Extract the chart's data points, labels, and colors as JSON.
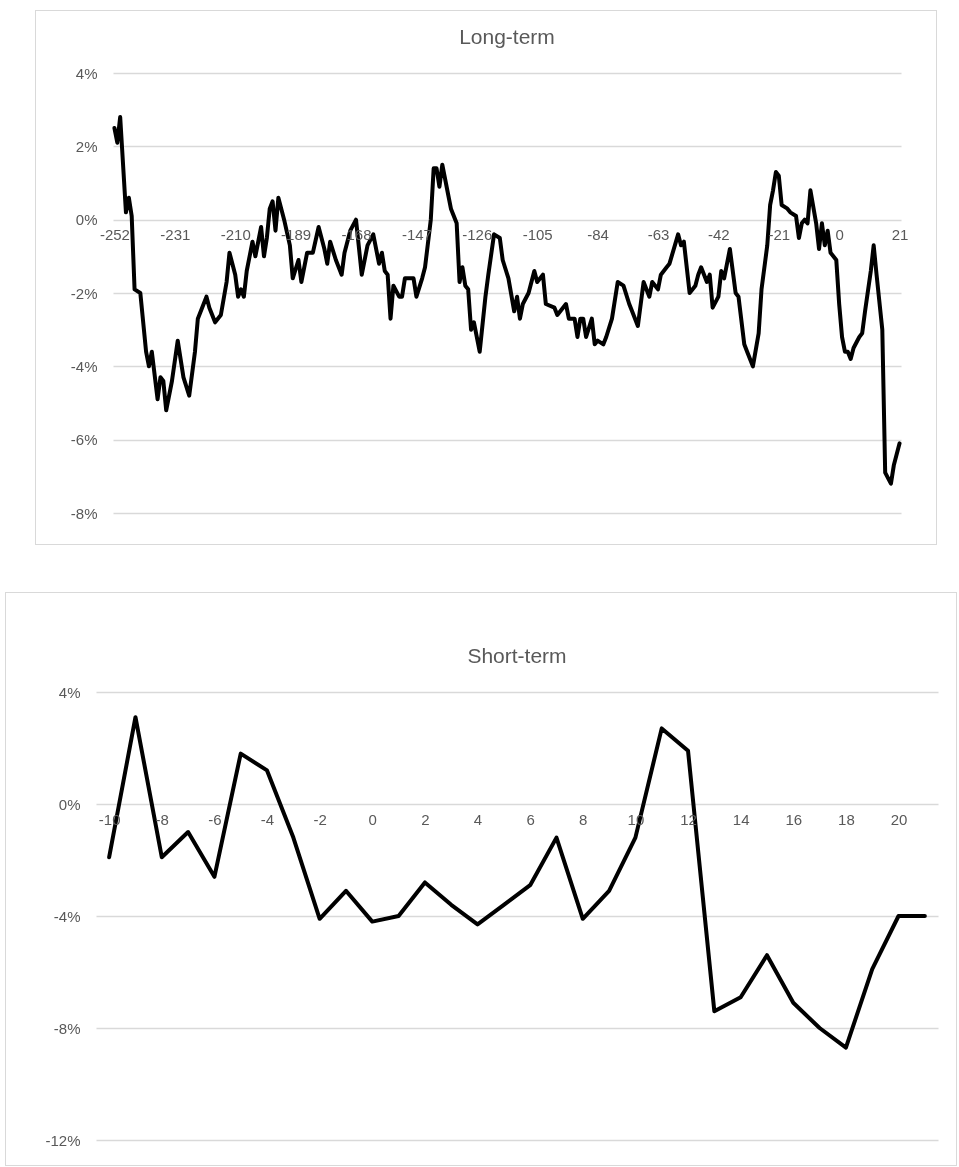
{
  "chart_data": [
    {
      "type": "line",
      "title": "Long-term",
      "grid": "y",
      "xlim": [
        -252.5,
        21.5
      ],
      "xticks": [
        -252,
        -231,
        -210,
        -189,
        -168,
        -147,
        -126,
        -105,
        -84,
        -63,
        -42,
        -21,
        0,
        21
      ],
      "ylim": [
        -8,
        4
      ],
      "yticks": [
        {
          "value": -8,
          "label": "-8%"
        },
        {
          "value": -6,
          "label": "-6%"
        },
        {
          "value": -4,
          "label": "-4%"
        },
        {
          "value": -2,
          "label": "-2%"
        },
        {
          "value": 0,
          "label": "0%"
        },
        {
          "value": 2,
          "label": "2%"
        },
        {
          "value": 4,
          "label": "4%"
        }
      ],
      "x": [
        -252,
        -251,
        -250,
        -248,
        -247,
        -246,
        -245,
        -243,
        -241,
        -240,
        -239,
        -237,
        -236,
        -235,
        -234,
        -232,
        -230,
        -228,
        -226,
        -224,
        -223,
        -220,
        -219,
        -217,
        -215,
        -213,
        -212,
        -210,
        -209,
        -208,
        -207,
        -206,
        -204,
        -203,
        -201,
        -200,
        -199,
        -198,
        -197,
        -196,
        -195,
        -193,
        -191,
        -190,
        -188,
        -187,
        -185,
        -183,
        -181,
        -179,
        -178,
        -177,
        -175,
        -173,
        -172,
        -170,
        -168,
        -166,
        -164,
        -162,
        -160,
        -159,
        -158,
        -157,
        -156,
        -155,
        -153,
        -152,
        -151,
        -148,
        -147,
        -145,
        -144,
        -142,
        -141,
        -140,
        -139,
        -138,
        -136,
        -135,
        -133,
        -132,
        -131,
        -130,
        -129,
        -128,
        -127,
        -125,
        -123,
        -122,
        -120,
        -118,
        -117,
        -115,
        -113,
        -112,
        -111,
        -110,
        -108,
        -106,
        -105,
        -103,
        -102,
        -99,
        -98,
        -95,
        -94,
        -92,
        -91,
        -90,
        -89,
        -88,
        -86,
        -85,
        -84,
        -82,
        -81,
        -79,
        -77,
        -75,
        -73,
        -72,
        -70,
        -68,
        -66,
        -65,
        -63,
        -62,
        -60,
        -59,
        -56,
        -55,
        -54,
        -52,
        -50,
        -49,
        -48,
        -46,
        -45,
        -44,
        -42,
        -41,
        -40,
        -38,
        -36,
        -35,
        -33,
        -32,
        -30,
        -28,
        -27,
        -25,
        -24,
        -23,
        -22,
        -21,
        -20,
        -18,
        -17,
        -15,
        -14,
        -13,
        -12,
        -11,
        -10,
        -8,
        -7,
        -6,
        -5,
        -4,
        -3,
        -1,
        0,
        1,
        2,
        3,
        4,
        5,
        7,
        8,
        9,
        11,
        12,
        13,
        15,
        16,
        18,
        19,
        21
      ],
      "series": [
        {
          "color": "#000000",
          "values": [
            2.5,
            2.1,
            2.8,
            0.2,
            0.6,
            0.1,
            -1.9,
            -2.0,
            -3.6,
            -4.0,
            -3.6,
            -4.9,
            -4.3,
            -4.4,
            -5.2,
            -4.4,
            -3.3,
            -4.3,
            -4.8,
            -3.6,
            -2.7,
            -2.1,
            -2.4,
            -2.8,
            -2.6,
            -1.7,
            -0.9,
            -1.5,
            -2.1,
            -1.9,
            -2.1,
            -1.4,
            -0.6,
            -1.0,
            -0.2,
            -1.0,
            -0.5,
            0.3,
            0.5,
            -0.3,
            0.6,
            0.0,
            -0.7,
            -1.6,
            -1.1,
            -1.7,
            -0.9,
            -0.9,
            -0.2,
            -0.8,
            -1.2,
            -0.6,
            -1.1,
            -1.5,
            -0.9,
            -0.3,
            0.0,
            -1.5,
            -0.7,
            -0.4,
            -1.2,
            -0.9,
            -1.4,
            -1.5,
            -2.7,
            -1.8,
            -2.1,
            -2.1,
            -1.6,
            -1.6,
            -2.1,
            -1.6,
            -1.3,
            0.0,
            1.4,
            1.4,
            0.9,
            1.5,
            0.7,
            0.3,
            -0.1,
            -1.7,
            -1.3,
            -1.8,
            -1.9,
            -3.0,
            -2.8,
            -3.6,
            -2.1,
            -1.5,
            -0.4,
            -0.5,
            -1.1,
            -1.6,
            -2.5,
            -2.1,
            -2.7,
            -2.3,
            -2.0,
            -1.4,
            -1.7,
            -1.5,
            -2.3,
            -2.4,
            -2.6,
            -2.3,
            -2.7,
            -2.7,
            -3.2,
            -2.7,
            -2.7,
            -3.2,
            -2.7,
            -3.4,
            -3.3,
            -3.4,
            -3.2,
            -2.7,
            -1.7,
            -1.8,
            -2.3,
            -2.5,
            -2.9,
            -1.7,
            -2.1,
            -1.7,
            -1.9,
            -1.5,
            -1.3,
            -1.2,
            -0.4,
            -0.7,
            -0.6,
            -2.0,
            -1.8,
            -1.5,
            -1.3,
            -1.7,
            -1.5,
            -2.4,
            -2.1,
            -1.4,
            -1.6,
            -0.8,
            -2.0,
            -2.1,
            -3.4,
            -3.6,
            -4.0,
            -3.1,
            -1.9,
            -0.7,
            0.4,
            0.8,
            1.3,
            1.2,
            0.4,
            0.3,
            0.2,
            0.1,
            -0.5,
            -0.1,
            0.0,
            -0.1,
            0.8,
            -0.1,
            -0.8,
            -0.1,
            -0.7,
            -0.3,
            -0.9,
            -1.1,
            -2.3,
            -3.2,
            -3.6,
            -3.6,
            -3.8,
            -3.5,
            -3.2,
            -3.1,
            -2.5,
            -1.4,
            -0.7,
            -1.5,
            -3.0,
            -6.9,
            -7.2,
            -6.7,
            -6.1
          ]
        }
      ]
    },
    {
      "type": "line",
      "title": "Short-term",
      "grid": "y",
      "xlim": [
        -10.5,
        21.5
      ],
      "xticks": [
        -10,
        -8,
        -6,
        -4,
        -2,
        0,
        2,
        4,
        6,
        8,
        10,
        12,
        14,
        16,
        18,
        20
      ],
      "ylim": [
        -12,
        4
      ],
      "yticks": [
        {
          "value": -12,
          "label": "-12%"
        },
        {
          "value": -8,
          "label": "-8%"
        },
        {
          "value": -4,
          "label": "-4%"
        },
        {
          "value": 0,
          "label": "0%"
        },
        {
          "value": 4,
          "label": "4%"
        }
      ],
      "x": [
        -10,
        -9,
        -8,
        -7,
        -6,
        -5,
        -4,
        -3,
        -2,
        -1,
        0,
        1,
        2,
        3,
        4,
        5,
        6,
        7,
        8,
        9,
        10,
        11,
        12,
        13,
        14,
        15,
        16,
        17,
        18,
        19,
        20,
        21
      ],
      "series": [
        {
          "color": "#000000",
          "values": [
            -1.9,
            3.1,
            -1.9,
            -1.0,
            -2.6,
            1.8,
            1.2,
            -1.2,
            -4.1,
            -3.1,
            -4.2,
            -4.0,
            -2.8,
            -3.6,
            -4.3,
            -3.6,
            -2.9,
            -1.2,
            -4.1,
            -3.1,
            -1.2,
            2.7,
            1.9,
            -7.4,
            -6.9,
            -5.4,
            -7.1,
            -8.0,
            -8.7,
            -5.9,
            -4.0,
            -4.0
          ]
        }
      ]
    }
  ]
}
